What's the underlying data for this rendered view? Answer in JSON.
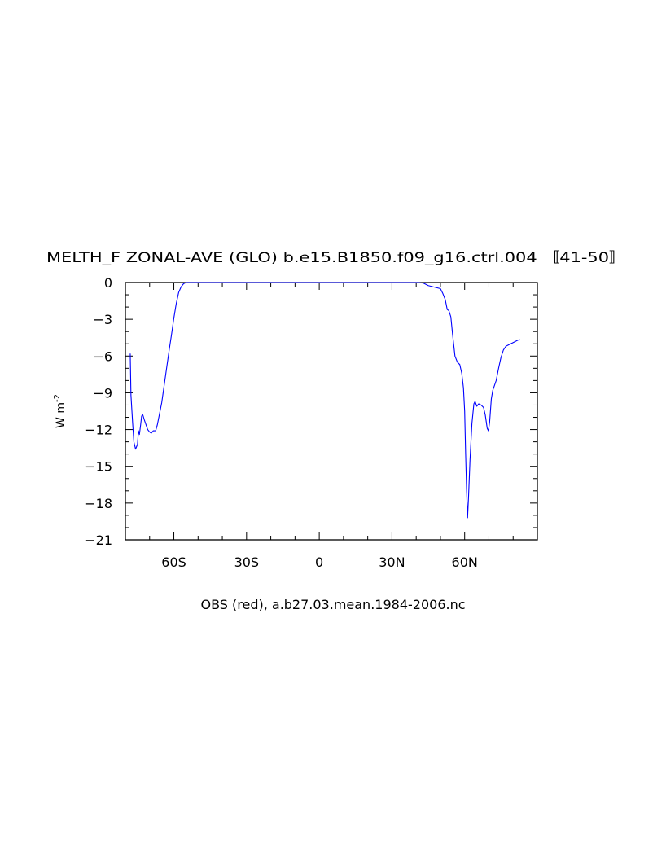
{
  "chart_data": {
    "type": "line",
    "title": "MELTH_F ZONAL-AVE (GLO) b.e15.B1850.f09_g16.ctrl.004 〚41-50〛",
    "xlabel": "OBS (red), a.b27.03.mean.1984-2006.nc",
    "ylabel": "W m",
    "ylabel_exponent": "-2",
    "xlim": [
      -80,
      90
    ],
    "ylim": [
      -21,
      0
    ],
    "grid": false,
    "x_ticks": [
      {
        "value": -60,
        "label": "60S"
      },
      {
        "value": -30,
        "label": "30S"
      },
      {
        "value": 0,
        "label": "0"
      },
      {
        "value": 30,
        "label": "30N"
      },
      {
        "value": 60,
        "label": "60N"
      }
    ],
    "y_ticks": [
      {
        "value": 0,
        "label": "0"
      },
      {
        "value": -3,
        "label": "−3"
      },
      {
        "value": -6,
        "label": "−6"
      },
      {
        "value": -9,
        "label": "−9"
      },
      {
        "value": -12,
        "label": "−12"
      },
      {
        "value": -15,
        "label": "−15"
      },
      {
        "value": -18,
        "label": "−18"
      },
      {
        "value": -21,
        "label": "−21"
      }
    ],
    "series": [
      {
        "color": "#0000ff",
        "points": [
          [
            -78,
            -5.8
          ],
          [
            -77.7,
            -9.2
          ],
          [
            -77,
            -11.5
          ],
          [
            -76.5,
            -13.0
          ],
          [
            -75.8,
            -13.6
          ],
          [
            -75,
            -13.2
          ],
          [
            -74.6,
            -12.1
          ],
          [
            -74.2,
            -12.4
          ],
          [
            -73.7,
            -11.6
          ],
          [
            -73.3,
            -10.9
          ],
          [
            -72.8,
            -10.8
          ],
          [
            -72.2,
            -11.2
          ],
          [
            -71.5,
            -11.6
          ],
          [
            -70.8,
            -12.0
          ],
          [
            -70,
            -12.2
          ],
          [
            -69.3,
            -12.3
          ],
          [
            -68.5,
            -12.1
          ],
          [
            -67.5,
            -12.1
          ],
          [
            -66.8,
            -11.6
          ],
          [
            -66,
            -10.8
          ],
          [
            -65,
            -9.8
          ],
          [
            -64,
            -8.4
          ],
          [
            -63,
            -7.0
          ],
          [
            -62,
            -5.6
          ],
          [
            -61,
            -4.3
          ],
          [
            -60,
            -2.9
          ],
          [
            -59,
            -1.7
          ],
          [
            -58,
            -0.8
          ],
          [
            -57,
            -0.35
          ],
          [
            -56,
            -0.1
          ],
          [
            -55,
            0
          ],
          [
            -54,
            0
          ],
          [
            -30,
            0
          ],
          [
            0,
            0
          ],
          [
            41,
            0
          ],
          [
            43,
            -0.05
          ],
          [
            44,
            -0.15
          ],
          [
            45,
            -0.25
          ],
          [
            46,
            -0.3
          ],
          [
            47,
            -0.35
          ],
          [
            48,
            -0.4
          ],
          [
            49,
            -0.45
          ],
          [
            50,
            -0.5
          ],
          [
            51,
            -0.9
          ],
          [
            52,
            -1.4
          ],
          [
            52.8,
            -2.2
          ],
          [
            53.5,
            -2.3
          ],
          [
            54.3,
            -2.8
          ],
          [
            55,
            -4.2
          ],
          [
            56,
            -6.0
          ],
          [
            57,
            -6.5
          ],
          [
            58,
            -6.7
          ],
          [
            58.8,
            -7.4
          ],
          [
            59.5,
            -8.6
          ],
          [
            60.0,
            -10.5
          ],
          [
            60.4,
            -14.0
          ],
          [
            60.8,
            -17.0
          ],
          [
            61.2,
            -19.2
          ],
          [
            61.6,
            -17.5
          ],
          [
            62.2,
            -14.5
          ],
          [
            63,
            -11.5
          ],
          [
            63.8,
            -9.9
          ],
          [
            64.3,
            -9.7
          ],
          [
            65,
            -10.1
          ],
          [
            65.8,
            -9.9
          ],
          [
            66.8,
            -10.0
          ],
          [
            67.8,
            -10.2
          ],
          [
            68.5,
            -10.8
          ],
          [
            69.3,
            -11.9
          ],
          [
            69.8,
            -12.1
          ],
          [
            70.3,
            -11.4
          ],
          [
            71,
            -9.5
          ],
          [
            71.6,
            -8.8
          ],
          [
            72.3,
            -8.4
          ],
          [
            73,
            -8.0
          ],
          [
            74,
            -7.0
          ],
          [
            75,
            -6.1
          ],
          [
            76,
            -5.5
          ],
          [
            77,
            -5.2
          ],
          [
            78,
            -5.1
          ],
          [
            79,
            -5.0
          ],
          [
            80,
            -4.9
          ],
          [
            81,
            -4.8
          ],
          [
            82,
            -4.7
          ],
          [
            82.8,
            -4.65
          ]
        ]
      }
    ]
  }
}
